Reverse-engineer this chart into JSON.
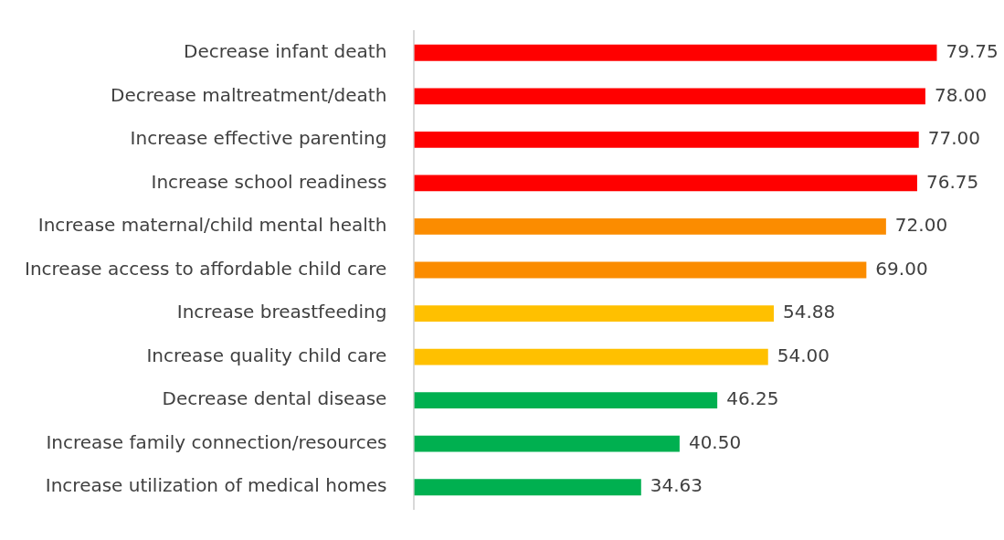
{
  "chart_data": {
    "type": "bar",
    "orientation": "horizontal",
    "legend": false,
    "tick_labels": "y",
    "categories": [
      "Decrease infant death",
      "Decrease maltreatment/death",
      "Increase effective parenting",
      "Increase school readiness",
      "Increase maternal/child mental health",
      "Increase access to affordable child care",
      "Increase breastfeeding",
      "Increase quality child care",
      "Decrease dental disease",
      "Increase family connection/resources",
      "Increase utilization of medical homes"
    ],
    "values": [
      79.75,
      78.0,
      77.0,
      76.75,
      72.0,
      69.0,
      54.88,
      54.0,
      46.25,
      40.5,
      34.63
    ],
    "value_labels": [
      "79.75",
      "78.00",
      "77.00",
      "76.75",
      "72.00",
      "69.00",
      "54.88",
      "54.00",
      "46.25",
      "40.50",
      "34.63"
    ],
    "colors": [
      "#ff0000",
      "#ff0000",
      "#ff0000",
      "#ff0000",
      "#fb8c00",
      "#fb8c00",
      "#ffc000",
      "#ffc000",
      "#00b050",
      "#00b050",
      "#00b050"
    ]
  }
}
